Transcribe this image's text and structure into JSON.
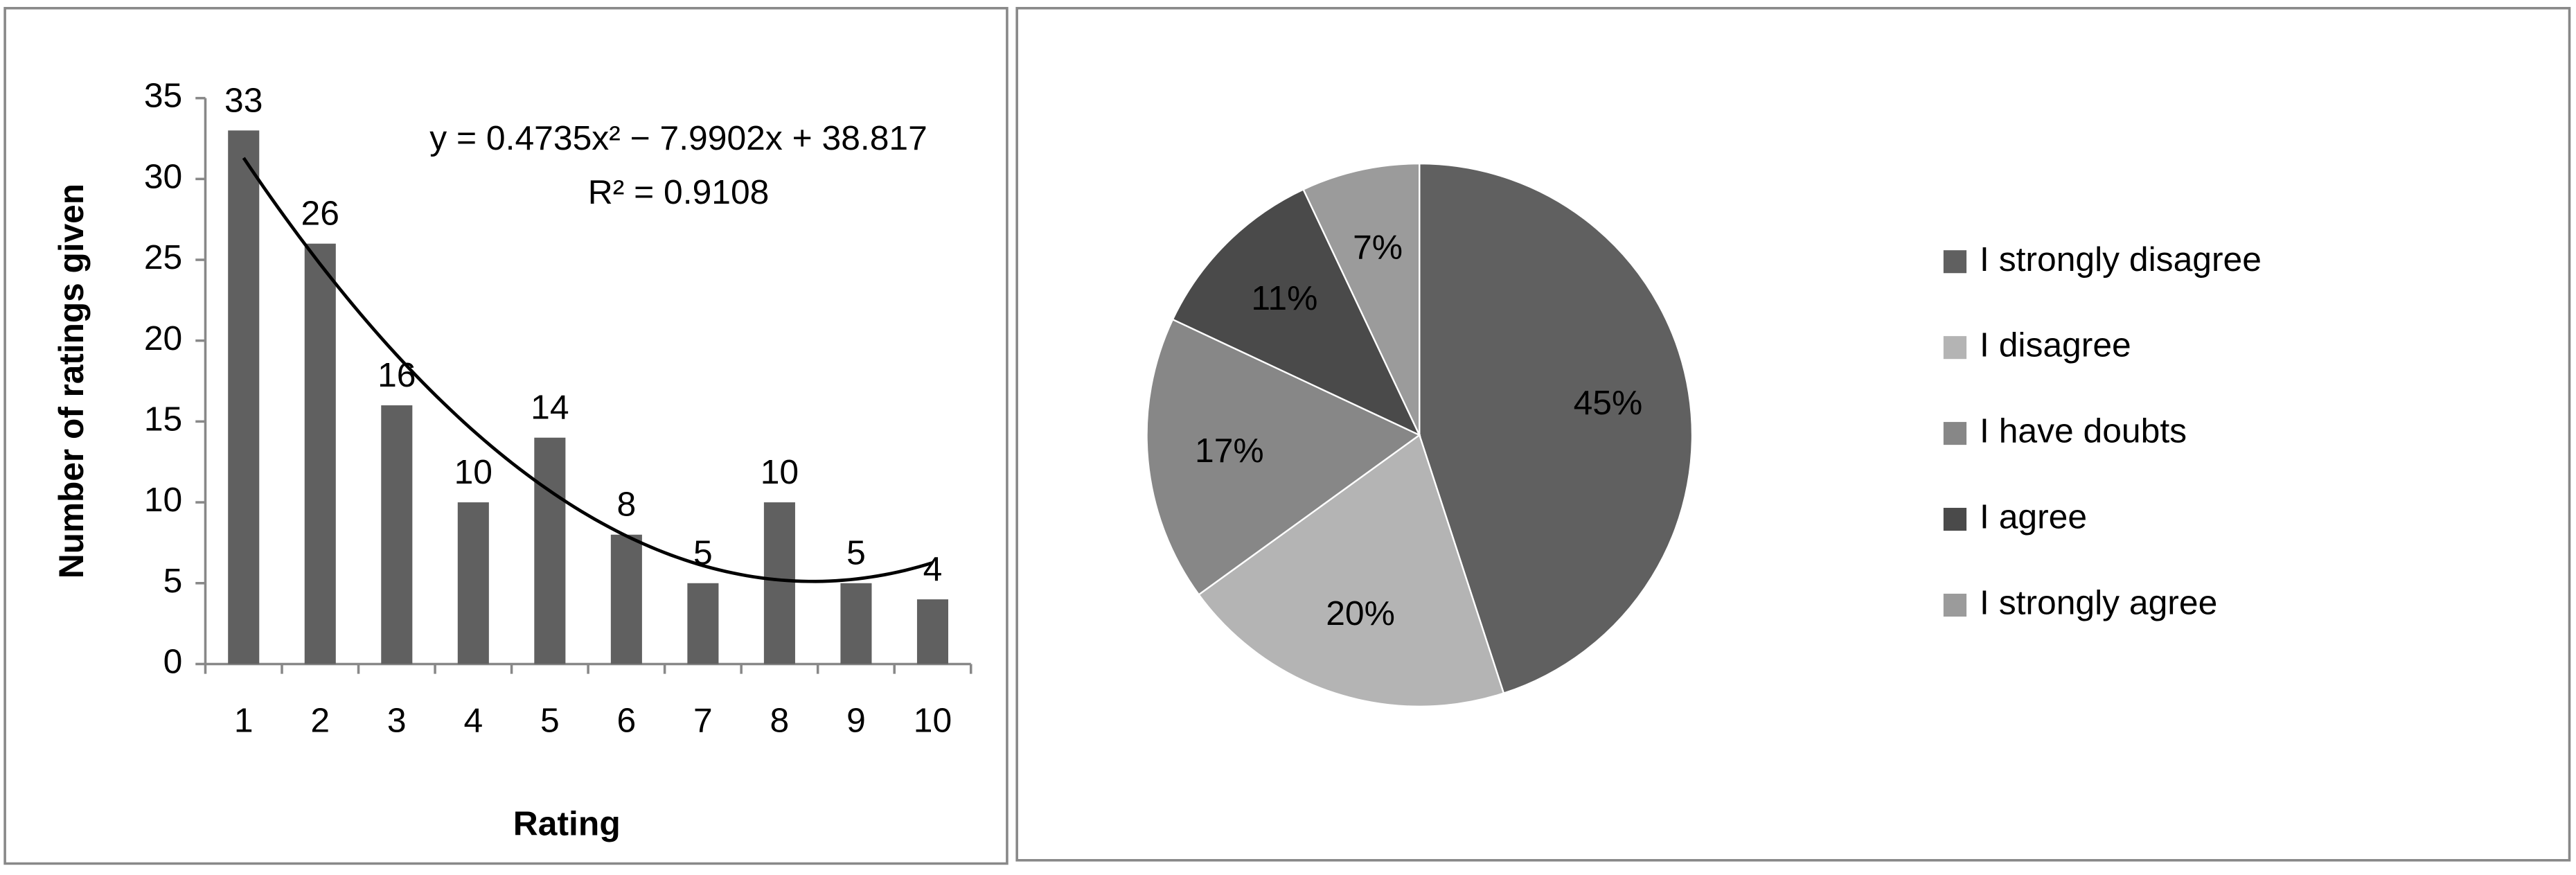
{
  "chart_data": [
    {
      "type": "bar",
      "x_label": "Rating",
      "y_label": "Number of ratings given",
      "categories": [
        1,
        2,
        3,
        4,
        5,
        6,
        7,
        8,
        9,
        10
      ],
      "values": [
        33,
        26,
        16,
        10,
        14,
        8,
        5,
        10,
        5,
        4
      ],
      "color": "#606060",
      "ylim": [
        0,
        35
      ],
      "yticks": [
        0,
        5,
        10,
        15,
        20,
        25,
        30,
        35
      ],
      "trendline": {
        "type": "polynomial",
        "coefficients": [
          0.4735,
          -7.9902,
          38.817
        ],
        "equation": "y = 0.4735x² − 7.9902x + 38.817",
        "r_squared": "R² = 0.9108"
      }
    },
    {
      "type": "pie",
      "categories": [
        "I strongly disagree",
        "I disagree",
        "I have doubts",
        "I agree",
        "I strongly agree"
      ],
      "values": [
        45,
        20,
        17,
        11,
        7
      ],
      "value_labels": [
        "45%",
        "20%",
        "17%",
        "11%",
        "7%"
      ],
      "colors": [
        "#606060",
        "#b4b4b4",
        "#878787",
        "#4a4a4a",
        "#9b9b9b"
      ],
      "legend": "right"
    }
  ]
}
